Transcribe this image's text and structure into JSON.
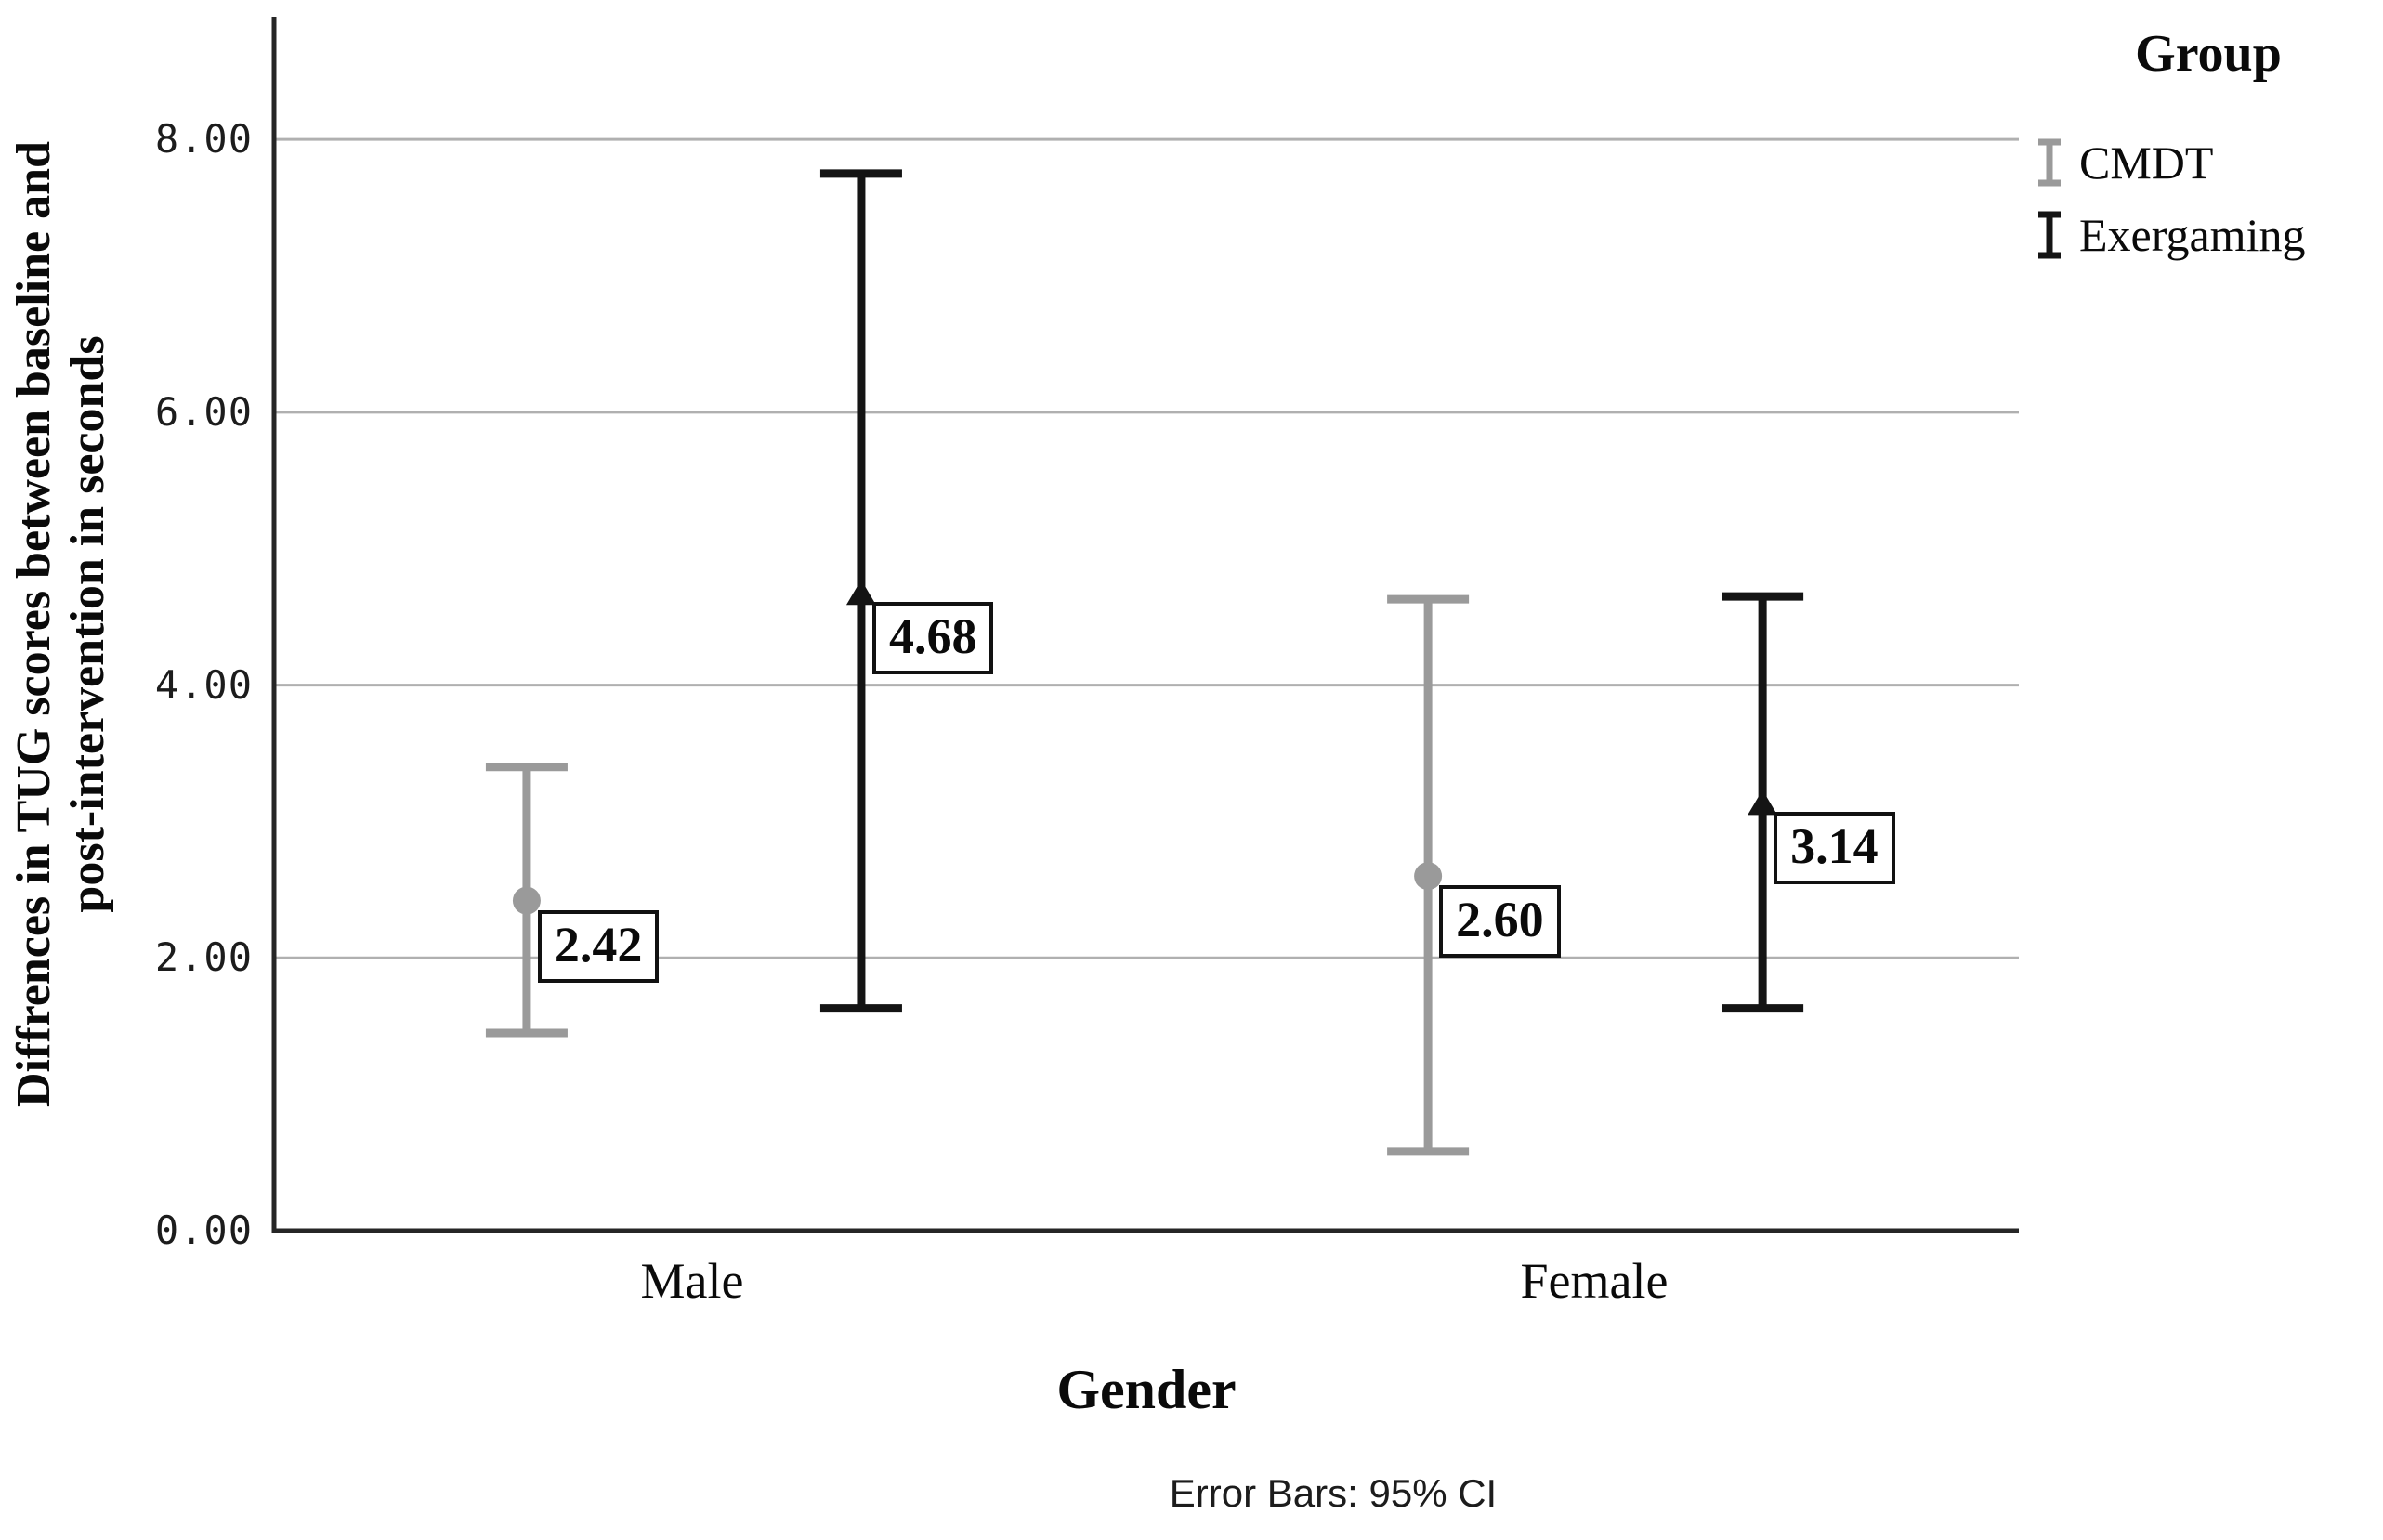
{
  "chart_data": {
    "type": "errorbar",
    "title": "",
    "xlabel": "Gender",
    "ylabel": "Diffrences in TUG scores between baseline and post-intervention in seconds",
    "ylabel_lines": [
      "Diffrences in TUG scores between baseline and",
      "post-intervention in seconds"
    ],
    "categories": [
      "Male",
      "Female"
    ],
    "series": [
      {
        "name": "CMDT",
        "color": "#9a9a9a",
        "marker": "circle",
        "means": [
          2.42,
          2.6
        ],
        "labels": [
          "2.42",
          "2.60"
        ],
        "ci_low": [
          1.45,
          0.58
        ],
        "ci_high": [
          3.4,
          4.63
        ],
        "x_fractions": [
          0.1448,
          0.6614
        ]
      },
      {
        "name": "Exergaming",
        "color": "#141414",
        "marker": "triangle",
        "means": [
          4.68,
          3.14
        ],
        "labels": [
          "4.68",
          "3.14"
        ],
        "ci_low": [
          1.63,
          1.63
        ],
        "ci_high": [
          7.75,
          4.65
        ],
        "x_fractions": [
          0.3365,
          0.8531
        ]
      }
    ],
    "yticks": [
      {
        "label": "0.00",
        "value": 0
      },
      {
        "label": "2.00",
        "value": 2
      },
      {
        "label": "4.00",
        "value": 4
      },
      {
        "label": "6.00",
        "value": 6
      },
      {
        "label": "8.00",
        "value": 8
      }
    ],
    "ylim": [
      0,
      8.9
    ],
    "grid": true,
    "gridline_color": "#b0b0b0",
    "axis_color": "#262626",
    "legend": {
      "title": "Group",
      "position": "top-right"
    },
    "footnote": "Error Bars: 95% CI"
  }
}
